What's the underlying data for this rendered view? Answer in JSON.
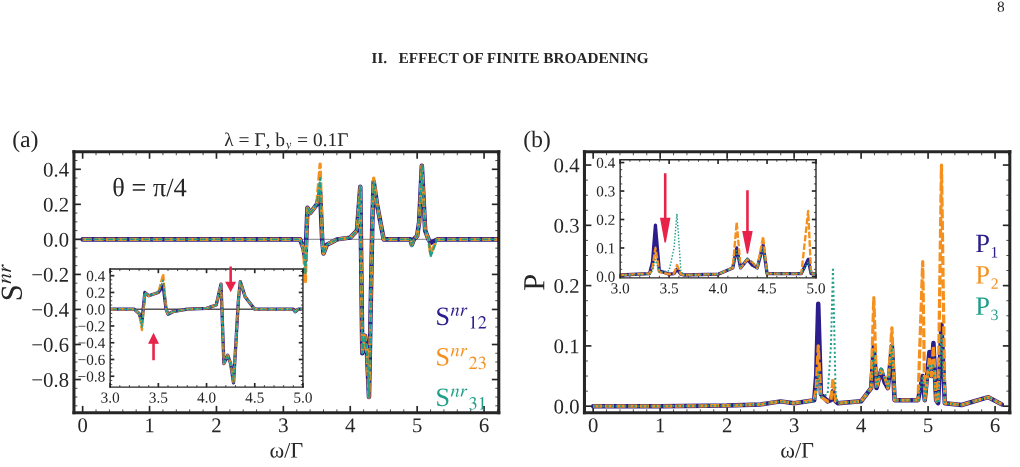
{
  "chart_data": [
    {
      "type": "line",
      "title": "λ = Γ, b$_{y}$ = 0.1Γ",
      "xlabel": "ω/Γ",
      "ylabel": "S$^{nr}$",
      "annotations": [
        "8",
        "II.   EFFECT OF FINITE BROADENING",
        "(a)",
        "θ = π/4"
      ],
      "x": [
        0,
        1,
        2,
        3,
        3.25,
        3.3,
        3.33,
        3.36,
        3.4,
        3.5,
        3.55,
        3.58,
        3.6,
        3.65,
        3.8,
        4.0,
        4.1,
        4.15,
        4.18,
        4.22,
        4.25,
        4.28,
        4.33,
        4.35,
        4.4,
        4.5,
        4.9,
        4.92,
        4.95,
        5.0,
        5.03,
        5.07,
        5.12,
        5.17,
        5.2,
        5.3,
        6.2
      ],
      "series": [
        {
          "name": "S$^{nr}$$_{12}$",
          "color": "#2b1e8c",
          "line_style": "solid",
          "values": [
            0,
            0,
            0,
            0,
            0,
            -0.05,
            -0.12,
            0.18,
            0.15,
            0.2,
            0.27,
            0.0,
            -0.08,
            -0.03,
            0,
            0.01,
            0.05,
            0.3,
            -0.65,
            -0.55,
            -0.65,
            -0.9,
            0.1,
            0.33,
            0.2,
            0,
            0,
            -0.03,
            0,
            0.02,
            0.1,
            0.42,
            0.05,
            0,
            -0.02,
            0,
            0
          ]
        },
        {
          "name": "S$^{nr}$$_{23}$",
          "color": "#f5901e",
          "line_style": "dashed",
          "values": [
            0,
            0,
            0,
            0,
            0,
            -0.05,
            -0.24,
            0.18,
            0.15,
            0.2,
            0.43,
            0.0,
            -0.08,
            -0.03,
            0,
            0.01,
            0.05,
            0.3,
            -0.65,
            -0.55,
            -0.65,
            -0.9,
            0.1,
            0.35,
            0.2,
            0,
            0,
            -0.03,
            0,
            0.02,
            0.1,
            0.42,
            0.05,
            0,
            -0.08,
            0,
            0
          ]
        },
        {
          "name": "S$^{nr}$$_{31}$",
          "color": "#1f9e89",
          "line_style": "dashed",
          "values": [
            0,
            0,
            0,
            0,
            0,
            -0.05,
            -0.2,
            0.18,
            0.15,
            0.2,
            0.35,
            0.0,
            -0.08,
            -0.03,
            0,
            0.01,
            0.05,
            0.3,
            -0.65,
            -0.55,
            -0.65,
            -0.9,
            0.1,
            0.33,
            0.2,
            0,
            0,
            -0.04,
            0,
            0.02,
            0.1,
            0.42,
            0.05,
            0,
            -0.1,
            0,
            0
          ]
        }
      ],
      "xlim": [
        -0.13,
        6.22
      ],
      "ylim": [
        -0.99,
        0.5
      ],
      "xticks": [
        0,
        1,
        2,
        3,
        4,
        5,
        6
      ],
      "yticks": [
        {
          "value": -0.8,
          "label": "−0.8"
        },
        {
          "value": -0.6,
          "label": "−0.6"
        },
        {
          "value": -0.4,
          "label": "−0.4"
        },
        {
          "value": -0.2,
          "label": "−0.2"
        },
        {
          "value": 0,
          "label": "0.0"
        },
        0.2,
        0.4
      ],
      "ref_lines": [
        {
          "axis": "y",
          "value": 0,
          "color": "#999999"
        }
      ],
      "grid": false
    },
    {
      "type": "line",
      "x": [
        3.0,
        3.25,
        3.3,
        3.33,
        3.36,
        3.4,
        3.5,
        3.55,
        3.58,
        3.6,
        3.65,
        3.8,
        4.0,
        4.1,
        4.15,
        4.18,
        4.22,
        4.25,
        4.28,
        4.33,
        4.35,
        4.4,
        4.5,
        4.9,
        4.92,
        4.95,
        5.0
      ],
      "series": [
        {
          "color": "#2b1e8c",
          "line_style": "solid",
          "values": [
            0,
            0,
            -0.05,
            -0.15,
            0.2,
            0.16,
            0.2,
            0.28,
            0.0,
            -0.06,
            -0.03,
            0,
            0.01,
            0.05,
            0.3,
            -0.65,
            -0.55,
            -0.65,
            -0.88,
            0.1,
            0.33,
            0.15,
            0,
            0,
            -0.03,
            0,
            0
          ]
        },
        {
          "color": "#f5901e",
          "line_style": "dashed",
          "values": [
            0,
            0,
            -0.05,
            -0.25,
            0.2,
            0.16,
            0.2,
            0.42,
            0.0,
            -0.06,
            -0.03,
            0,
            0.01,
            0.05,
            0.3,
            -0.65,
            -0.55,
            -0.65,
            -0.88,
            0.1,
            0.33,
            0.15,
            0,
            0,
            -0.03,
            0,
            0
          ]
        },
        {
          "color": "#1f9e89",
          "line_style": "dashed",
          "values": [
            0,
            0,
            -0.05,
            -0.22,
            0.2,
            0.16,
            0.2,
            0.35,
            0.0,
            -0.06,
            -0.03,
            0,
            0.01,
            0.05,
            0.3,
            -0.65,
            -0.55,
            -0.65,
            -0.88,
            0.1,
            0.33,
            0.15,
            0,
            0,
            -0.04,
            0,
            0
          ]
        }
      ],
      "xlim": [
        3.0,
        5.0
      ],
      "ylim": [
        -0.93,
        0.48
      ],
      "xticks": [
        {
          "value": 3,
          "label": "3.0"
        },
        3.5,
        {
          "value": 4,
          "label": "4.0"
        },
        4.5,
        {
          "value": 5,
          "label": "5.0"
        }
      ],
      "yticks": [
        {
          "value": -0.8,
          "label": "−0.8"
        },
        {
          "value": -0.6,
          "label": "−0.6"
        },
        {
          "value": -0.4,
          "label": "−0.4"
        },
        {
          "value": -0.2,
          "label": "−0.2"
        },
        {
          "value": 0,
          "label": "0.0"
        },
        0.2,
        0.4
      ],
      "ref_lines": [
        {
          "axis": "y",
          "value": 0,
          "color": "#555555"
        }
      ],
      "grid": false
    },
    {
      "type": "line",
      "xlabel": "ω/Γ",
      "ylabel": "P",
      "annotations": [
        "(b)"
      ],
      "x": [
        0,
        1,
        2,
        2.5,
        2.8,
        3.0,
        3.3,
        3.33,
        3.36,
        3.4,
        3.5,
        3.55,
        3.58,
        3.62,
        3.65,
        4.0,
        4.15,
        4.19,
        4.23,
        4.3,
        4.35,
        4.4,
        4.46,
        4.5,
        4.85,
        4.92,
        4.95,
        5.02,
        5.05,
        5.08,
        5.12,
        5.15,
        5.2,
        5.25,
        5.5,
        5.9,
        6.1
      ],
      "series": [
        {
          "name": "P₁",
          "color": "#2b1e8c",
          "line_style": "solid",
          "values": [
            0,
            0,
            0.001,
            0.003,
            0.008,
            0.005,
            0.01,
            0.05,
            0.17,
            0.02,
            0.008,
            0.01,
            0.025,
            0.008,
            0.005,
            0.008,
            0.03,
            0.1,
            0.03,
            0.06,
            0.04,
            0.03,
            0.1,
            0.01,
            0.01,
            0.05,
            0.01,
            0.09,
            0.05,
            0.105,
            0.01,
            0.005,
            0.135,
            0.005,
            0.002,
            0.015,
            0.003
          ]
        },
        {
          "name": "P₂",
          "color": "#f5901e",
          "line_style": "dashed",
          "values": [
            0,
            0,
            0.001,
            0.003,
            0.008,
            0.005,
            0.01,
            0.03,
            0.1,
            0.015,
            0.008,
            0.01,
            0.045,
            0.008,
            0.005,
            0.008,
            0.03,
            0.18,
            0.03,
            0.06,
            0.05,
            0.03,
            0.13,
            0.01,
            0.01,
            0.24,
            0.01,
            0.08,
            0.05,
            0.1,
            0.01,
            0.005,
            0.4,
            0.005,
            0.002,
            0.015,
            0.003
          ]
        },
        {
          "name": "P₃",
          "color": "#1f9e89",
          "line_style": "dotted",
          "values": [
            0,
            0,
            0.001,
            0.003,
            0.008,
            0.005,
            0.008,
            0.02,
            0.06,
            0.015,
            0.02,
            0.1,
            0.23,
            0.02,
            0.005,
            0.008,
            0.03,
            0.09,
            0.03,
            0.065,
            0.05,
            0.03,
            0.1,
            0.01,
            0.01,
            0.05,
            0.01,
            0.07,
            0.06,
            0.07,
            0.01,
            0.005,
            0.12,
            0.005,
            0.002,
            0.015,
            0.003
          ]
        }
      ],
      "xlim": [
        -0.13,
        6.22
      ],
      "ylim": [
        -0.011,
        0.422
      ],
      "xticks": [
        0,
        1,
        2,
        3,
        4,
        5,
        6
      ],
      "yticks": [
        {
          "value": 0,
          "label": "0.0"
        },
        0.1,
        0.2,
        0.3,
        0.4
      ],
      "grid": false
    },
    {
      "type": "line",
      "x": [
        3.0,
        3.3,
        3.33,
        3.36,
        3.4,
        3.5,
        3.55,
        3.58,
        3.62,
        3.65,
        4.0,
        4.15,
        4.19,
        4.23,
        4.3,
        4.35,
        4.4,
        4.46,
        4.5,
        4.85,
        4.92,
        4.95,
        5.0
      ],
      "series": [
        {
          "color": "#2b1e8c",
          "line_style": "solid",
          "values": [
            0.005,
            0.01,
            0.05,
            0.18,
            0.02,
            0.008,
            0.01,
            0.025,
            0.008,
            0.005,
            0.008,
            0.03,
            0.1,
            0.03,
            0.06,
            0.04,
            0.03,
            0.11,
            0.01,
            0.01,
            0.06,
            0.01,
            0.01
          ]
        },
        {
          "color": "#f5901e",
          "line_style": "dashed",
          "values": [
            0.005,
            0.01,
            0.03,
            0.1,
            0.015,
            0.008,
            0.01,
            0.04,
            0.008,
            0.005,
            0.008,
            0.03,
            0.19,
            0.03,
            0.06,
            0.05,
            0.03,
            0.14,
            0.01,
            0.01,
            0.23,
            0.01,
            0.01
          ]
        },
        {
          "color": "#1f9e89",
          "line_style": "dotted",
          "values": [
            0.005,
            0.008,
            0.02,
            0.06,
            0.015,
            0.02,
            0.1,
            0.22,
            0.02,
            0.005,
            0.008,
            0.03,
            0.09,
            0.03,
            0.065,
            0.05,
            0.03,
            0.1,
            0.01,
            0.01,
            0.05,
            0.01,
            0.01
          ]
        }
      ],
      "xlim": [
        3.0,
        5.0
      ],
      "ylim": [
        -0.005,
        0.41
      ],
      "xticks": [
        {
          "value": 3,
          "label": "3.0"
        },
        3.5,
        {
          "value": 4,
          "label": "4.0"
        },
        4.5,
        {
          "value": 5,
          "label": "5.0"
        }
      ],
      "yticks": [
        {
          "value": 0,
          "label": "0.0"
        },
        0.1,
        0.2,
        0.3,
        0.4
      ],
      "grid": false
    }
  ]
}
